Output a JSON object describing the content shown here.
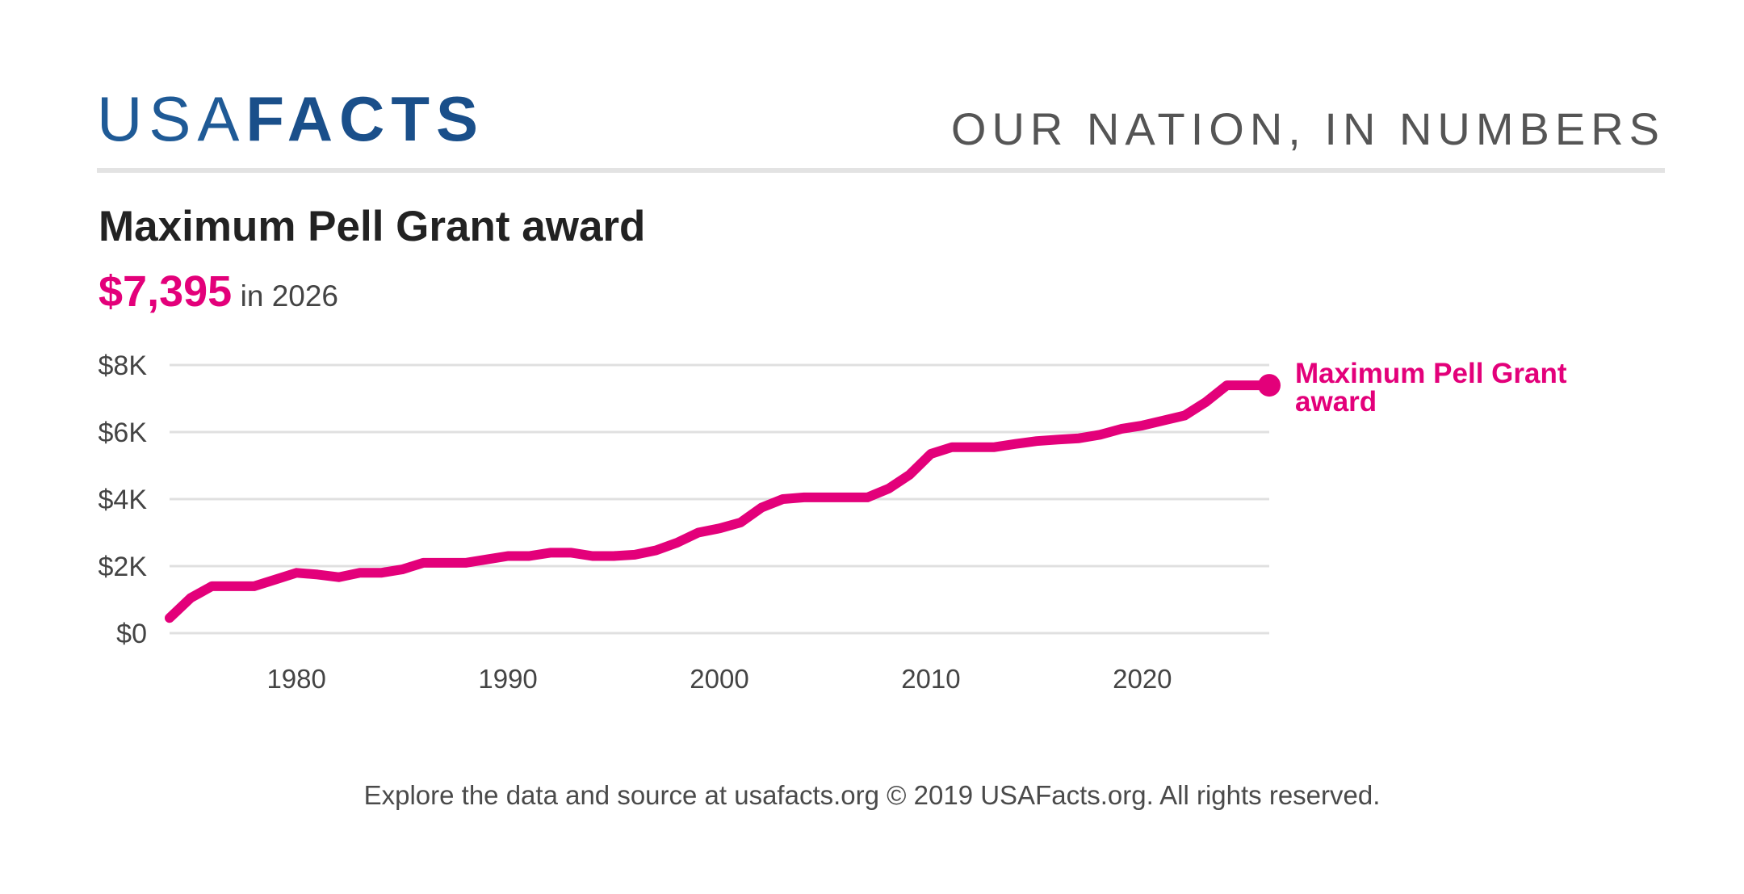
{
  "brand": {
    "logo_light": "USA",
    "logo_bold": "FACTS",
    "tagline": "OUR NATION, IN NUMBERS"
  },
  "header": {
    "title": "Maximum Pell Grant award",
    "value": "$7,395",
    "value_suffix": "in 2026"
  },
  "footer": {
    "text": "Explore the data and source at usafacts.org © 2019 USAFacts.org. All rights reserved."
  },
  "colors": {
    "series": "#e3007a",
    "brand": "#1a4f8a",
    "grid": "#e0e0e0"
  },
  "chart_data": {
    "type": "line",
    "title": "Maximum Pell Grant award",
    "xlabel": "",
    "ylabel": "",
    "xlim": [
      1974,
      2026
    ],
    "ylim": [
      0,
      8000
    ],
    "x_ticks": [
      1980,
      1990,
      2000,
      2010,
      2020
    ],
    "x_tick_labels": [
      "1980",
      "1990",
      "2000",
      "2010",
      "2020"
    ],
    "y_ticks": [
      0,
      2000,
      4000,
      6000,
      8000
    ],
    "y_tick_labels": [
      "$0",
      "$2K",
      "$4K",
      "$6K",
      "$8K"
    ],
    "grid": true,
    "legend": "end-of-line label",
    "series": [
      {
        "name": "Maximum Pell Grant award",
        "color": "#e3007a",
        "x": [
          1974,
          1975,
          1976,
          1977,
          1978,
          1979,
          1980,
          1981,
          1982,
          1983,
          1984,
          1985,
          1986,
          1987,
          1988,
          1989,
          1990,
          1991,
          1992,
          1993,
          1994,
          1995,
          1996,
          1997,
          1998,
          1999,
          2000,
          2001,
          2002,
          2003,
          2004,
          2005,
          2006,
          2007,
          2008,
          2009,
          2010,
          2011,
          2012,
          2013,
          2014,
          2015,
          2016,
          2017,
          2018,
          2019,
          2020,
          2021,
          2022,
          2023,
          2024,
          2025,
          2026
        ],
        "y": [
          452,
          1050,
          1400,
          1400,
          1400,
          1600,
          1800,
          1750,
          1670,
          1800,
          1800,
          1900,
          2100,
          2100,
          2100,
          2200,
          2300,
          2300,
          2400,
          2400,
          2300,
          2300,
          2340,
          2470,
          2700,
          3000,
          3125,
          3300,
          3750,
          4000,
          4050,
          4050,
          4050,
          4050,
          4310,
          4731,
          5350,
          5550,
          5550,
          5550,
          5645,
          5730,
          5775,
          5815,
          5920,
          6095,
          6195,
          6345,
          6495,
          6895,
          7395,
          7395,
          7395
        ]
      }
    ],
    "end_label": {
      "line1": "Maximum Pell Grant",
      "line2": "award"
    }
  }
}
